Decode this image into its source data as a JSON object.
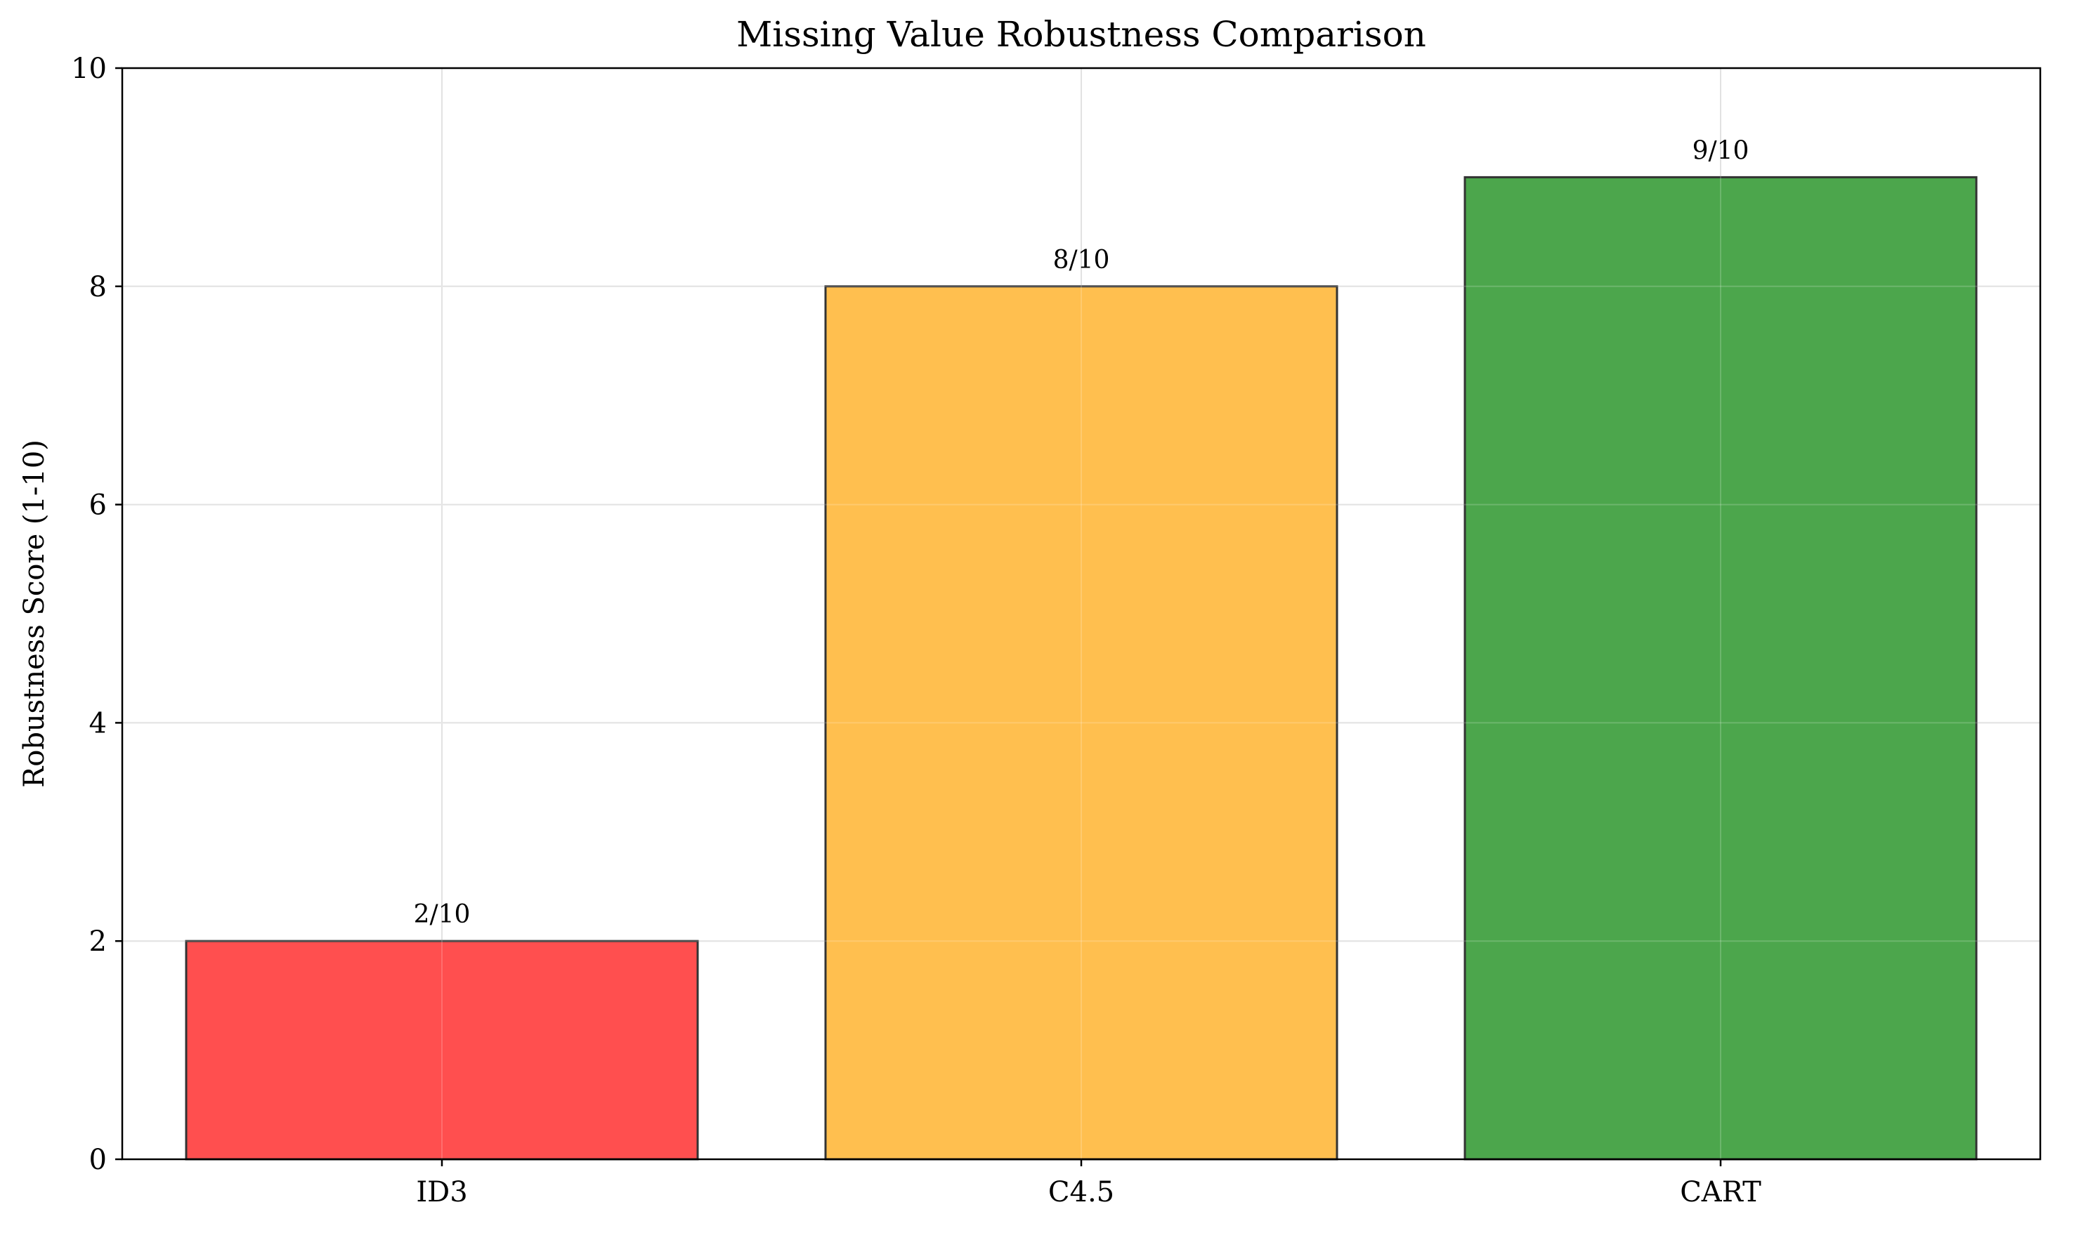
{
  "chart_data": {
    "type": "bar",
    "title": "Missing Value Robustness Comparison",
    "xlabel": "",
    "ylabel": "Robustness Score (1-10)",
    "categories": [
      "ID3",
      "C4.5",
      "CART"
    ],
    "values": [
      2,
      8,
      9
    ],
    "data_labels": [
      "2/10",
      "8/10",
      "9/10"
    ],
    "colors": [
      "#ff4f4f",
      "#ffbf4f",
      "#4ca64c"
    ],
    "edge_color": "#333333",
    "ylim": [
      0,
      10
    ],
    "yticks": [
      0,
      2,
      4,
      6,
      8,
      10
    ],
    "ytick_labels": [
      "0",
      "2",
      "4",
      "6",
      "8",
      "10"
    ],
    "grid": true,
    "legend": false
  }
}
